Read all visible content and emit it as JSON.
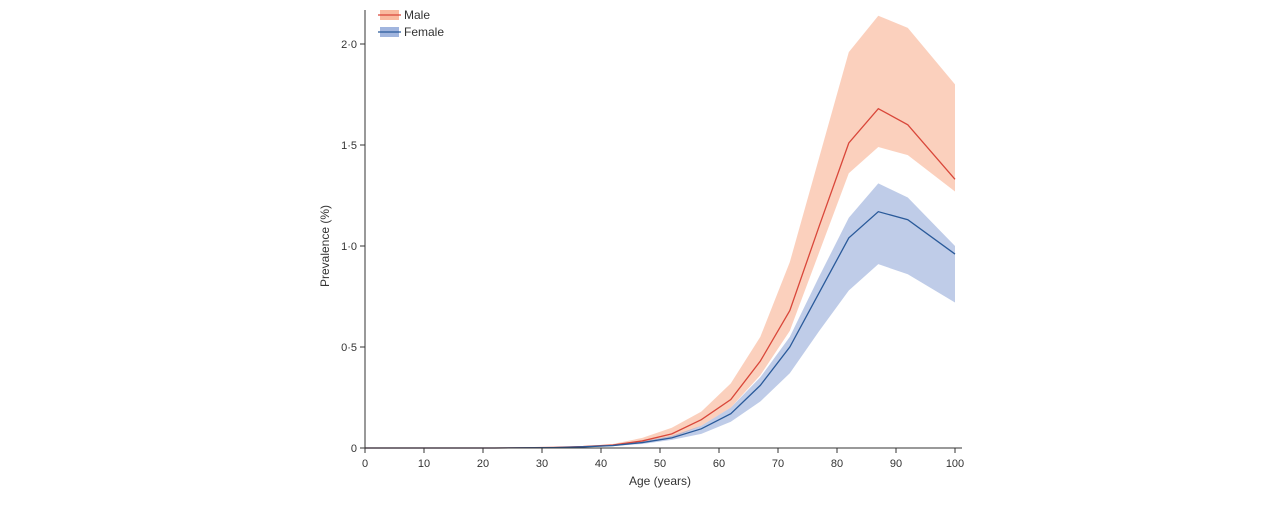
{
  "chart_data": {
    "type": "area",
    "title": "",
    "xlabel": "Age (years)",
    "ylabel": "Prevalence (%)",
    "xlim": [
      0,
      100
    ],
    "ylim": [
      0,
      2.15
    ],
    "grid": false,
    "legend_position": "top-left",
    "x_ticks": [
      0,
      10,
      20,
      30,
      40,
      50,
      60,
      70,
      80,
      90,
      100
    ],
    "x_tick_labels": [
      "0",
      "10",
      "20",
      "30",
      "40",
      "50",
      "60",
      "70",
      "80",
      "90",
      "100"
    ],
    "y_ticks": [
      0,
      0.5,
      1.0,
      1.5,
      2.0
    ],
    "y_tick_labels": [
      "0",
      "0·5",
      "1·0",
      "1·5",
      "2·0"
    ],
    "x": [
      0,
      2,
      7,
      12,
      17,
      22,
      27,
      32,
      37,
      42,
      47,
      52,
      57,
      62,
      67,
      72,
      77,
      82,
      87,
      92,
      100
    ],
    "series": [
      {
        "name": "Male",
        "line_color": "#d9473a",
        "band_color": "#f7a987",
        "values": [
          0,
          0,
          0,
          0,
          0,
          0,
          0.001,
          0.003,
          0.007,
          0.015,
          0.035,
          0.07,
          0.14,
          0.24,
          0.43,
          0.68,
          1.1,
          1.51,
          1.68,
          1.6,
          1.33
        ],
        "lower": [
          0,
          0,
          0,
          0,
          0,
          0,
          0.001,
          0.002,
          0.005,
          0.011,
          0.025,
          0.05,
          0.11,
          0.2,
          0.36,
          0.58,
          0.97,
          1.36,
          1.49,
          1.45,
          1.27
        ],
        "upper": [
          0,
          0,
          0,
          0,
          0,
          0,
          0.002,
          0.004,
          0.009,
          0.02,
          0.05,
          0.1,
          0.18,
          0.32,
          0.55,
          0.92,
          1.44,
          1.96,
          2.14,
          2.08,
          1.8
        ]
      },
      {
        "name": "Female",
        "line_color": "#2a5a9a",
        "band_color": "#8aa3d6",
        "values": [
          0,
          0,
          0,
          0,
          0,
          0,
          0.001,
          0.002,
          0.006,
          0.012,
          0.027,
          0.05,
          0.095,
          0.17,
          0.31,
          0.5,
          0.77,
          1.04,
          1.17,
          1.13,
          0.96
        ],
        "lower": [
          0,
          0,
          0,
          0,
          0,
          0,
          0.0005,
          0.0015,
          0.004,
          0.009,
          0.02,
          0.04,
          0.07,
          0.13,
          0.23,
          0.37,
          0.58,
          0.78,
          0.91,
          0.86,
          0.72
        ],
        "upper": [
          0,
          0,
          0,
          0,
          0,
          0,
          0.001,
          0.003,
          0.007,
          0.015,
          0.033,
          0.06,
          0.11,
          0.2,
          0.35,
          0.55,
          0.85,
          1.14,
          1.31,
          1.24,
          1.0
        ]
      }
    ]
  }
}
